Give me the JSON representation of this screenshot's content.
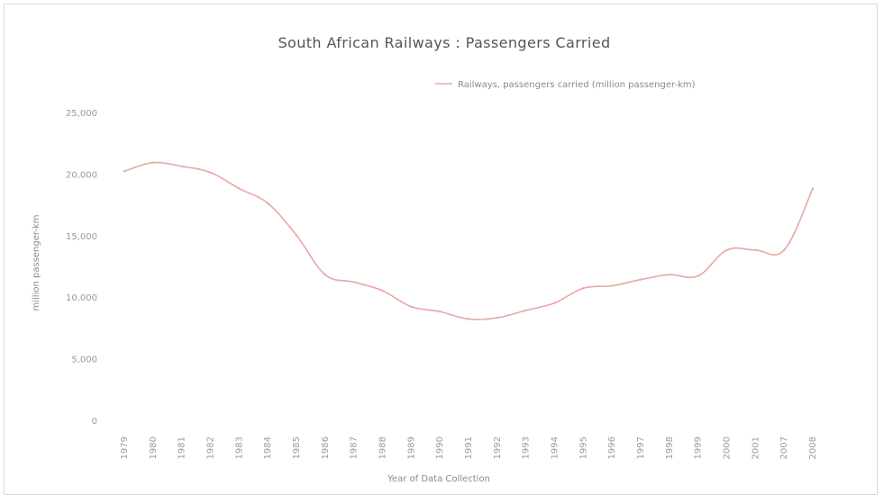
{
  "chart_data": {
    "type": "line",
    "title": "South African Railways : Passengers Carried",
    "xlabel": "Year of Data Collection",
    "ylabel": "million passenger-km",
    "ylim": [
      0,
      25000
    ],
    "yticks": [
      "0",
      "5,000",
      "10,000",
      "15,000",
      "20,000",
      "25,000"
    ],
    "yticks_values": [
      0,
      5000,
      10000,
      15000,
      20000,
      25000
    ],
    "categories": [
      "1979",
      "1980",
      "1981",
      "1982",
      "1983",
      "1984",
      "1985",
      "1986",
      "1987",
      "1988",
      "1989",
      "1990",
      "1991",
      "1992",
      "1993",
      "1994",
      "1995",
      "1996",
      "1997",
      "1998",
      "1999",
      "2000",
      "2001",
      "2007",
      "2008"
    ],
    "series": [
      {
        "name": "Railways, passengers carried (million passenger-km)",
        "color": "#e8a8a4",
        "values": [
          20300,
          21000,
          20700,
          20200,
          18900,
          17700,
          15100,
          11900,
          11300,
          10600,
          9300,
          8900,
          8300,
          8400,
          9000,
          9600,
          10800,
          11000,
          11500,
          11900,
          11800,
          13900,
          13900,
          13900,
          18900
        ]
      }
    ],
    "grid": false,
    "legend": "top-right"
  }
}
